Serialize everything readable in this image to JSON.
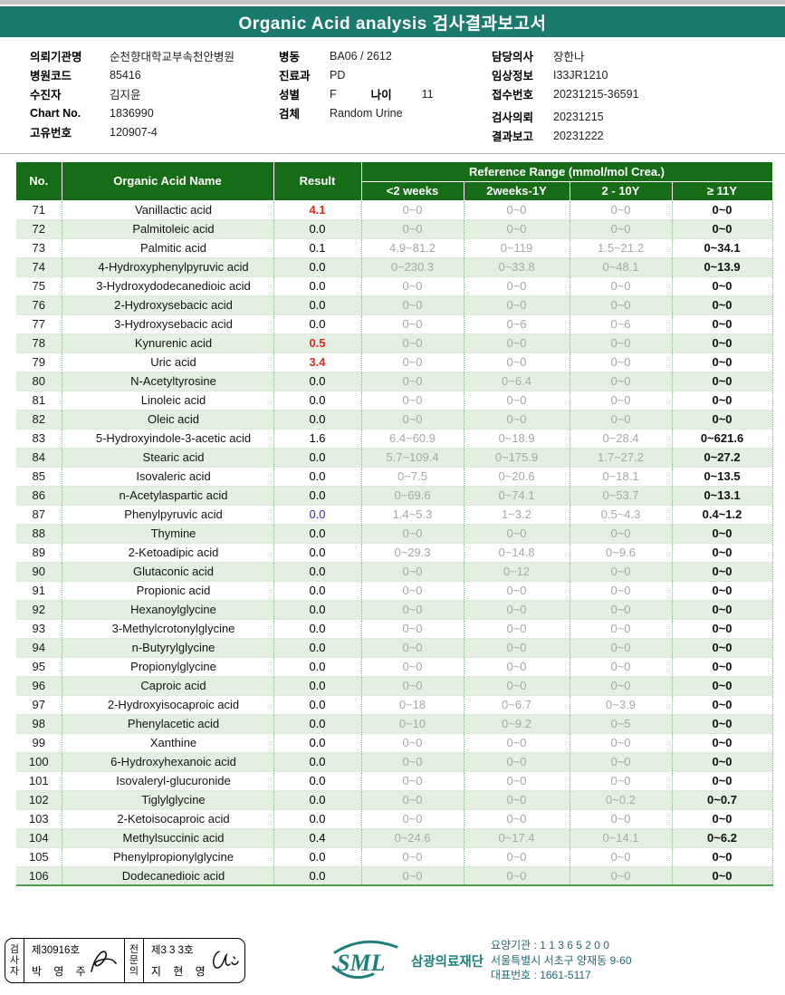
{
  "title": "Organic Acid analysis 검사결과보고서",
  "colors": {
    "title_band_teal": "#1a7a6e",
    "table_header_green": "#176d17",
    "row_stripe_green": "#e3efe0",
    "reference_gray": "#a6aaa6",
    "result_high_red": "#e02a22",
    "result_low_blue": "#2626c9",
    "logo_teal": "#1e7f7b"
  },
  "patient_info": {
    "col1": [
      {
        "label": "의뢰기관명",
        "value": "순천향대학교부속천안병원"
      },
      {
        "label": "병원코드",
        "value": "85416"
      },
      {
        "label": "수진자",
        "value": "김지윤"
      },
      {
        "label": "Chart No.",
        "value": "1836990"
      },
      {
        "label": "고유번호",
        "value": "120907-4"
      }
    ],
    "col2": [
      {
        "label": "병동",
        "value": "BA06 / 2612"
      },
      {
        "label": "진료과",
        "value": "PD"
      },
      {
        "label": "성별",
        "value": "F",
        "label2": "나이",
        "value2": "11"
      },
      {
        "label": "검체",
        "value": "Random Urine"
      }
    ],
    "col3": [
      {
        "label": "담당의사",
        "value": "장한나"
      },
      {
        "label": "임상정보",
        "value": "I33JR1210"
      },
      {
        "label": "접수번호",
        "value": "20231215-36591"
      },
      {
        "label": "검사의뢰",
        "value": "20231215"
      },
      {
        "label": "결과보고",
        "value": "20231222"
      }
    ]
  },
  "table": {
    "headers": {
      "no": "No.",
      "name": "Organic Acid Name",
      "result": "Result",
      "ref_group": "Reference Range (mmol/mol Crea.)",
      "ref_cols": [
        "<2 weeks",
        "2weeks-1Y",
        "2 - 10Y",
        "≥ 11Y"
      ]
    },
    "rows": [
      {
        "no": "71",
        "name": "Vanillactic acid",
        "result": "4.1",
        "result_color": "red",
        "refs": [
          "0~0",
          "0~0",
          "0~0",
          "0~0"
        ]
      },
      {
        "no": "72",
        "name": "Palmitoleic acid",
        "result": "0.0",
        "result_color": "black",
        "refs": [
          "0~0",
          "0~0",
          "0~0",
          "0~0"
        ]
      },
      {
        "no": "73",
        "name": "Palmitic acid",
        "result": "0.1",
        "result_color": "black",
        "refs": [
          "4.9~81.2",
          "0~119",
          "1.5~21.2",
          "0~34.1"
        ]
      },
      {
        "no": "74",
        "name": "4-Hydroxyphenylpyruvic acid",
        "result": "0.0",
        "result_color": "black",
        "refs": [
          "0~230.3",
          "0~33.8",
          "0~48.1",
          "0~13.9"
        ]
      },
      {
        "no": "75",
        "name": "3-Hydroxydodecanedioic acid",
        "result": "0.0",
        "result_color": "black",
        "refs": [
          "0~0",
          "0~0",
          "0~0",
          "0~0"
        ]
      },
      {
        "no": "76",
        "name": "2-Hydroxysebacic acid",
        "result": "0.0",
        "result_color": "black",
        "refs": [
          "0~0",
          "0~0",
          "0~0",
          "0~0"
        ]
      },
      {
        "no": "77",
        "name": "3-Hydroxysebacic acid",
        "result": "0.0",
        "result_color": "black",
        "refs": [
          "0~0",
          "0~6",
          "0~6",
          "0~0"
        ]
      },
      {
        "no": "78",
        "name": "Kynurenic acid",
        "result": "0.5",
        "result_color": "red",
        "refs": [
          "0~0",
          "0~0",
          "0~0",
          "0~0"
        ]
      },
      {
        "no": "79",
        "name": "Uric acid",
        "result": "3.4",
        "result_color": "red",
        "refs": [
          "0~0",
          "0~0",
          "0~0",
          "0~0"
        ]
      },
      {
        "no": "80",
        "name": "N-Acetyltyrosine",
        "result": "0.0",
        "result_color": "black",
        "refs": [
          "0~0",
          "0~6.4",
          "0~0",
          "0~0"
        ]
      },
      {
        "no": "81",
        "name": "Linoleic acid",
        "result": "0.0",
        "result_color": "black",
        "refs": [
          "0~0",
          "0~0",
          "0~0",
          "0~0"
        ]
      },
      {
        "no": "82",
        "name": "Oleic acid",
        "result": "0.0",
        "result_color": "black",
        "refs": [
          "0~0",
          "0~0",
          "0~0",
          "0~0"
        ]
      },
      {
        "no": "83",
        "name": "5-Hydroxyindole-3-acetic acid",
        "result": "1.6",
        "result_color": "black",
        "refs": [
          "6.4~60.9",
          "0~18.9",
          "0~28.4",
          "0~621.6"
        ]
      },
      {
        "no": "84",
        "name": "Stearic acid",
        "result": "0.0",
        "result_color": "black",
        "refs": [
          "5.7~109.4",
          "0~175.9",
          "1.7~27.2",
          "0~27.2"
        ]
      },
      {
        "no": "85",
        "name": "Isovaleric acid",
        "result": "0.0",
        "result_color": "black",
        "refs": [
          "0~7.5",
          "0~20.6",
          "0~18.1",
          "0~13.5"
        ]
      },
      {
        "no": "86",
        "name": "n-Acetylaspartic acid",
        "result": "0.0",
        "result_color": "black",
        "refs": [
          "0~69.6",
          "0~74.1",
          "0~53.7",
          "0~13.1"
        ]
      },
      {
        "no": "87",
        "name": "Phenylpyruvic acid",
        "result": "0.0",
        "result_color": "blue",
        "refs": [
          "1.4~5.3",
          "1~3.2",
          "0.5~4.3",
          "0.4~1.2"
        ]
      },
      {
        "no": "88",
        "name": "Thymine",
        "result": "0.0",
        "result_color": "black",
        "refs": [
          "0~0",
          "0~0",
          "0~0",
          "0~0"
        ]
      },
      {
        "no": "89",
        "name": "2-Ketoadipic acid",
        "result": "0.0",
        "result_color": "black",
        "refs": [
          "0~29.3",
          "0~14.8",
          "0~9.6",
          "0~0"
        ]
      },
      {
        "no": "90",
        "name": "Glutaconic acid",
        "result": "0.0",
        "result_color": "black",
        "refs": [
          "0~0",
          "0~12",
          "0~0",
          "0~0"
        ]
      },
      {
        "no": "91",
        "name": "Propionic acid",
        "result": "0.0",
        "result_color": "black",
        "refs": [
          "0~0",
          "0~0",
          "0~0",
          "0~0"
        ]
      },
      {
        "no": "92",
        "name": "Hexanoylglycine",
        "result": "0.0",
        "result_color": "black",
        "refs": [
          "0~0",
          "0~0",
          "0~0",
          "0~0"
        ]
      },
      {
        "no": "93",
        "name": "3-Methylcrotonylglycine",
        "result": "0.0",
        "result_color": "black",
        "refs": [
          "0~0",
          "0~0",
          "0~0",
          "0~0"
        ]
      },
      {
        "no": "94",
        "name": "n-Butyrylglycine",
        "result": "0.0",
        "result_color": "black",
        "refs": [
          "0~0",
          "0~0",
          "0~0",
          "0~0"
        ]
      },
      {
        "no": "95",
        "name": "Propionylglycine",
        "result": "0.0",
        "result_color": "black",
        "refs": [
          "0~0",
          "0~0",
          "0~0",
          "0~0"
        ]
      },
      {
        "no": "96",
        "name": "Caproic acid",
        "result": "0.0",
        "result_color": "black",
        "refs": [
          "0~0",
          "0~0",
          "0~0",
          "0~0"
        ]
      },
      {
        "no": "97",
        "name": "2-Hydroxyisocaproic acid",
        "result": "0.0",
        "result_color": "black",
        "refs": [
          "0~18",
          "0~6.7",
          "0~3.9",
          "0~0"
        ]
      },
      {
        "no": "98",
        "name": "Phenylacetic acid",
        "result": "0.0",
        "result_color": "black",
        "refs": [
          "0~10",
          "0~9.2",
          "0~5",
          "0~0"
        ]
      },
      {
        "no": "99",
        "name": "Xanthine",
        "result": "0.0",
        "result_color": "black",
        "refs": [
          "0~0",
          "0~0",
          "0~0",
          "0~0"
        ]
      },
      {
        "no": "100",
        "name": "6-Hydroxyhexanoic acid",
        "result": "0.0",
        "result_color": "black",
        "refs": [
          "0~0",
          "0~0",
          "0~0",
          "0~0"
        ]
      },
      {
        "no": "101",
        "name": "Isovaleryl-glucuronide",
        "result": "0.0",
        "result_color": "black",
        "refs": [
          "0~0",
          "0~0",
          "0~0",
          "0~0"
        ]
      },
      {
        "no": "102",
        "name": "Tiglylglycine",
        "result": "0.0",
        "result_color": "black",
        "refs": [
          "0~0",
          "0~0",
          "0~0.2",
          "0~0.7"
        ]
      },
      {
        "no": "103",
        "name": "2-Ketoisocaproic acid",
        "result": "0.0",
        "result_color": "black",
        "refs": [
          "0~0",
          "0~0",
          "0~0",
          "0~0"
        ]
      },
      {
        "no": "104",
        "name": "Methylsuccinic acid",
        "result": "0.4",
        "result_color": "black",
        "refs": [
          "0~24.6",
          "0~17.4",
          "0~14.1",
          "0~6.2"
        ]
      },
      {
        "no": "105",
        "name": "Phenylpropionylglycine",
        "result": "0.0",
        "result_color": "black",
        "refs": [
          "0~0",
          "0~0",
          "0~0",
          "0~0"
        ]
      },
      {
        "no": "106",
        "name": "Dodecanedioic acid",
        "result": "0.0",
        "result_color": "black",
        "refs": [
          "0~0",
          "0~0",
          "0~0",
          "0~0"
        ]
      }
    ]
  },
  "footer": {
    "examiner": {
      "role": "검사자",
      "license": "제30916호",
      "name": "박 영 주"
    },
    "specialist": {
      "role": "전문의",
      "license": "제3 3 3호",
      "name": "지 현 영"
    },
    "company": {
      "logo": "SML",
      "name": "삼광의료재단",
      "line1": "요양기관 : 1 1 3 6 5 2 0 0",
      "line2": "서울특별시 서초구 양재동 9-60",
      "line3": "대표번호 : 1661-5117"
    }
  }
}
